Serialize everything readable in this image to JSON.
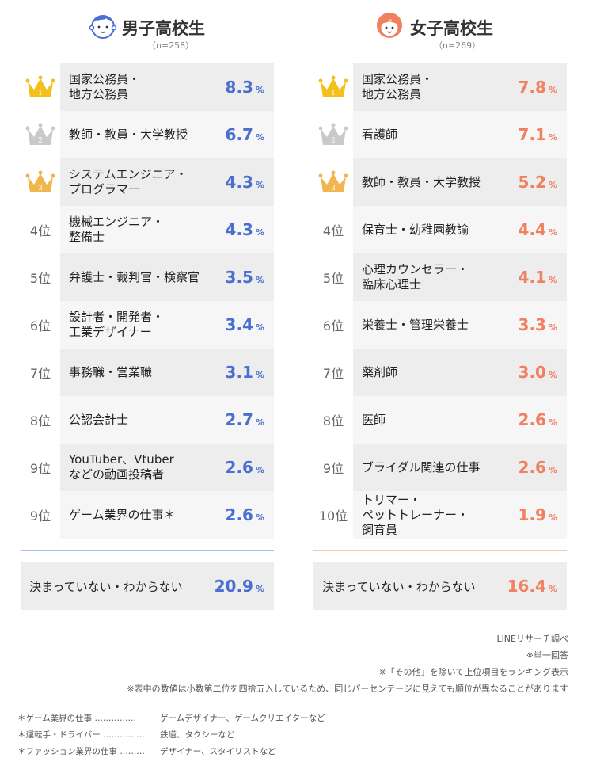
{
  "colors": {
    "boys": "#4a6fd0",
    "girls": "#f0805f",
    "gold": "#f4c01c",
    "silver": "#c9c9c9",
    "bronze": "#f0b650"
  },
  "boys": {
    "title": "男子高校生",
    "n": "（n=258）",
    "icon": "boy-face-icon",
    "rows": [
      {
        "rank": "1",
        "job": "国家公務員・\n地方公務員",
        "value": "8.3"
      },
      {
        "rank": "2",
        "job": "教師・教員・大学教授",
        "value": "6.7"
      },
      {
        "rank": "3",
        "job": "システムエンジニア・\nプログラマー",
        "value": "4.3"
      },
      {
        "rank": "4位",
        "job": "機械エンジニア・\n整備士",
        "value": "4.3"
      },
      {
        "rank": "5位",
        "job": "弁護士・裁判官・検察官",
        "value": "3.5"
      },
      {
        "rank": "6位",
        "job": "設計者・開発者・\n工業デザイナー",
        "value": "3.4"
      },
      {
        "rank": "7位",
        "job": "事務職・営業職",
        "value": "3.1"
      },
      {
        "rank": "8位",
        "job": "公認会計士",
        "value": "2.7"
      },
      {
        "rank": "9位",
        "job": "YouTuber、Vtuber\nなどの動画投稿者",
        "value": "2.6"
      },
      {
        "rank": "9位",
        "job": "ゲーム業界の仕事＊",
        "value": "2.6"
      }
    ],
    "undecided": {
      "label": "決まっていない・わからない",
      "value": "20.9"
    }
  },
  "girls": {
    "title": "女子高校生",
    "n": "（n=269）",
    "icon": "girl-face-icon",
    "rows": [
      {
        "rank": "1",
        "job": "国家公務員・\n地方公務員",
        "value": "7.8"
      },
      {
        "rank": "2",
        "job": "看護師",
        "value": "7.1"
      },
      {
        "rank": "3",
        "job": "教師・教員・大学教授",
        "value": "5.2"
      },
      {
        "rank": "4位",
        "job": "保育士・幼稚園教諭",
        "value": "4.4"
      },
      {
        "rank": "5位",
        "job": "心理カウンセラー・\n臨床心理士",
        "value": "4.1"
      },
      {
        "rank": "6位",
        "job": "栄養士・管理栄養士",
        "value": "3.3"
      },
      {
        "rank": "7位",
        "job": "薬剤師",
        "value": "3.0"
      },
      {
        "rank": "8位",
        "job": "医師",
        "value": "2.6"
      },
      {
        "rank": "9位",
        "job": "ブライダル関連の仕事",
        "value": "2.6"
      },
      {
        "rank": "10位",
        "job": "トリマー・\nペットトレーナー・\n飼育員",
        "value": "1.9"
      }
    ],
    "undecided": {
      "label": "決まっていない・わからない",
      "value": "16.4"
    }
  },
  "unit": "%",
  "notes": [
    "LINEリサーチ調べ",
    "※単一回答",
    "※「その他」を除いて上位項目をランキング表示",
    "※表中の数値は小数第二位を四捨五入しているため、同じパーセンテージに見えても順位が異なることがあります"
  ],
  "footnotes": [
    {
      "term": "＊ゲーム業界の仕事 ……………",
      "desc": "ゲームデザイナー、ゲームクリエイターなど"
    },
    {
      "term": "＊運転手・ドライバー ……………",
      "desc": "鉄道、タクシーなど"
    },
    {
      "term": "＊ファッション業界の仕事 ………",
      "desc": "デザイナー、スタイリストなど"
    }
  ],
  "chart_data": [
    {
      "type": "table",
      "title": "男子高校生",
      "subtitle": "（n=258）",
      "categories": [
        "国家公務員・地方公務員",
        "教師・教員・大学教授",
        "システムエンジニア・プログラマー",
        "機械エンジニア・整備士",
        "弁護士・裁判官・検察官",
        "設計者・開発者・工業デザイナー",
        "事務職・営業職",
        "公認会計士",
        "YouTuber、Vtuberなどの動画投稿者",
        "ゲーム業界の仕事＊",
        "決まっていない・わからない"
      ],
      "values": [
        8.3,
        6.7,
        4.3,
        4.3,
        3.5,
        3.4,
        3.1,
        2.7,
        2.6,
        2.6,
        20.9
      ],
      "unit": "%"
    },
    {
      "type": "table",
      "title": "女子高校生",
      "subtitle": "（n=269）",
      "categories": [
        "国家公務員・地方公務員",
        "看護師",
        "教師・教員・大学教授",
        "保育士・幼稚園教諭",
        "心理カウンセラー・臨床心理士",
        "栄養士・管理栄養士",
        "薬剤師",
        "医師",
        "ブライダル関連の仕事",
        "トリマー・ペットトレーナー・飼育員",
        "決まっていない・わからない"
      ],
      "values": [
        7.8,
        7.1,
        5.2,
        4.4,
        4.1,
        3.3,
        3.0,
        2.6,
        2.6,
        1.9,
        16.4
      ],
      "unit": "%"
    }
  ]
}
